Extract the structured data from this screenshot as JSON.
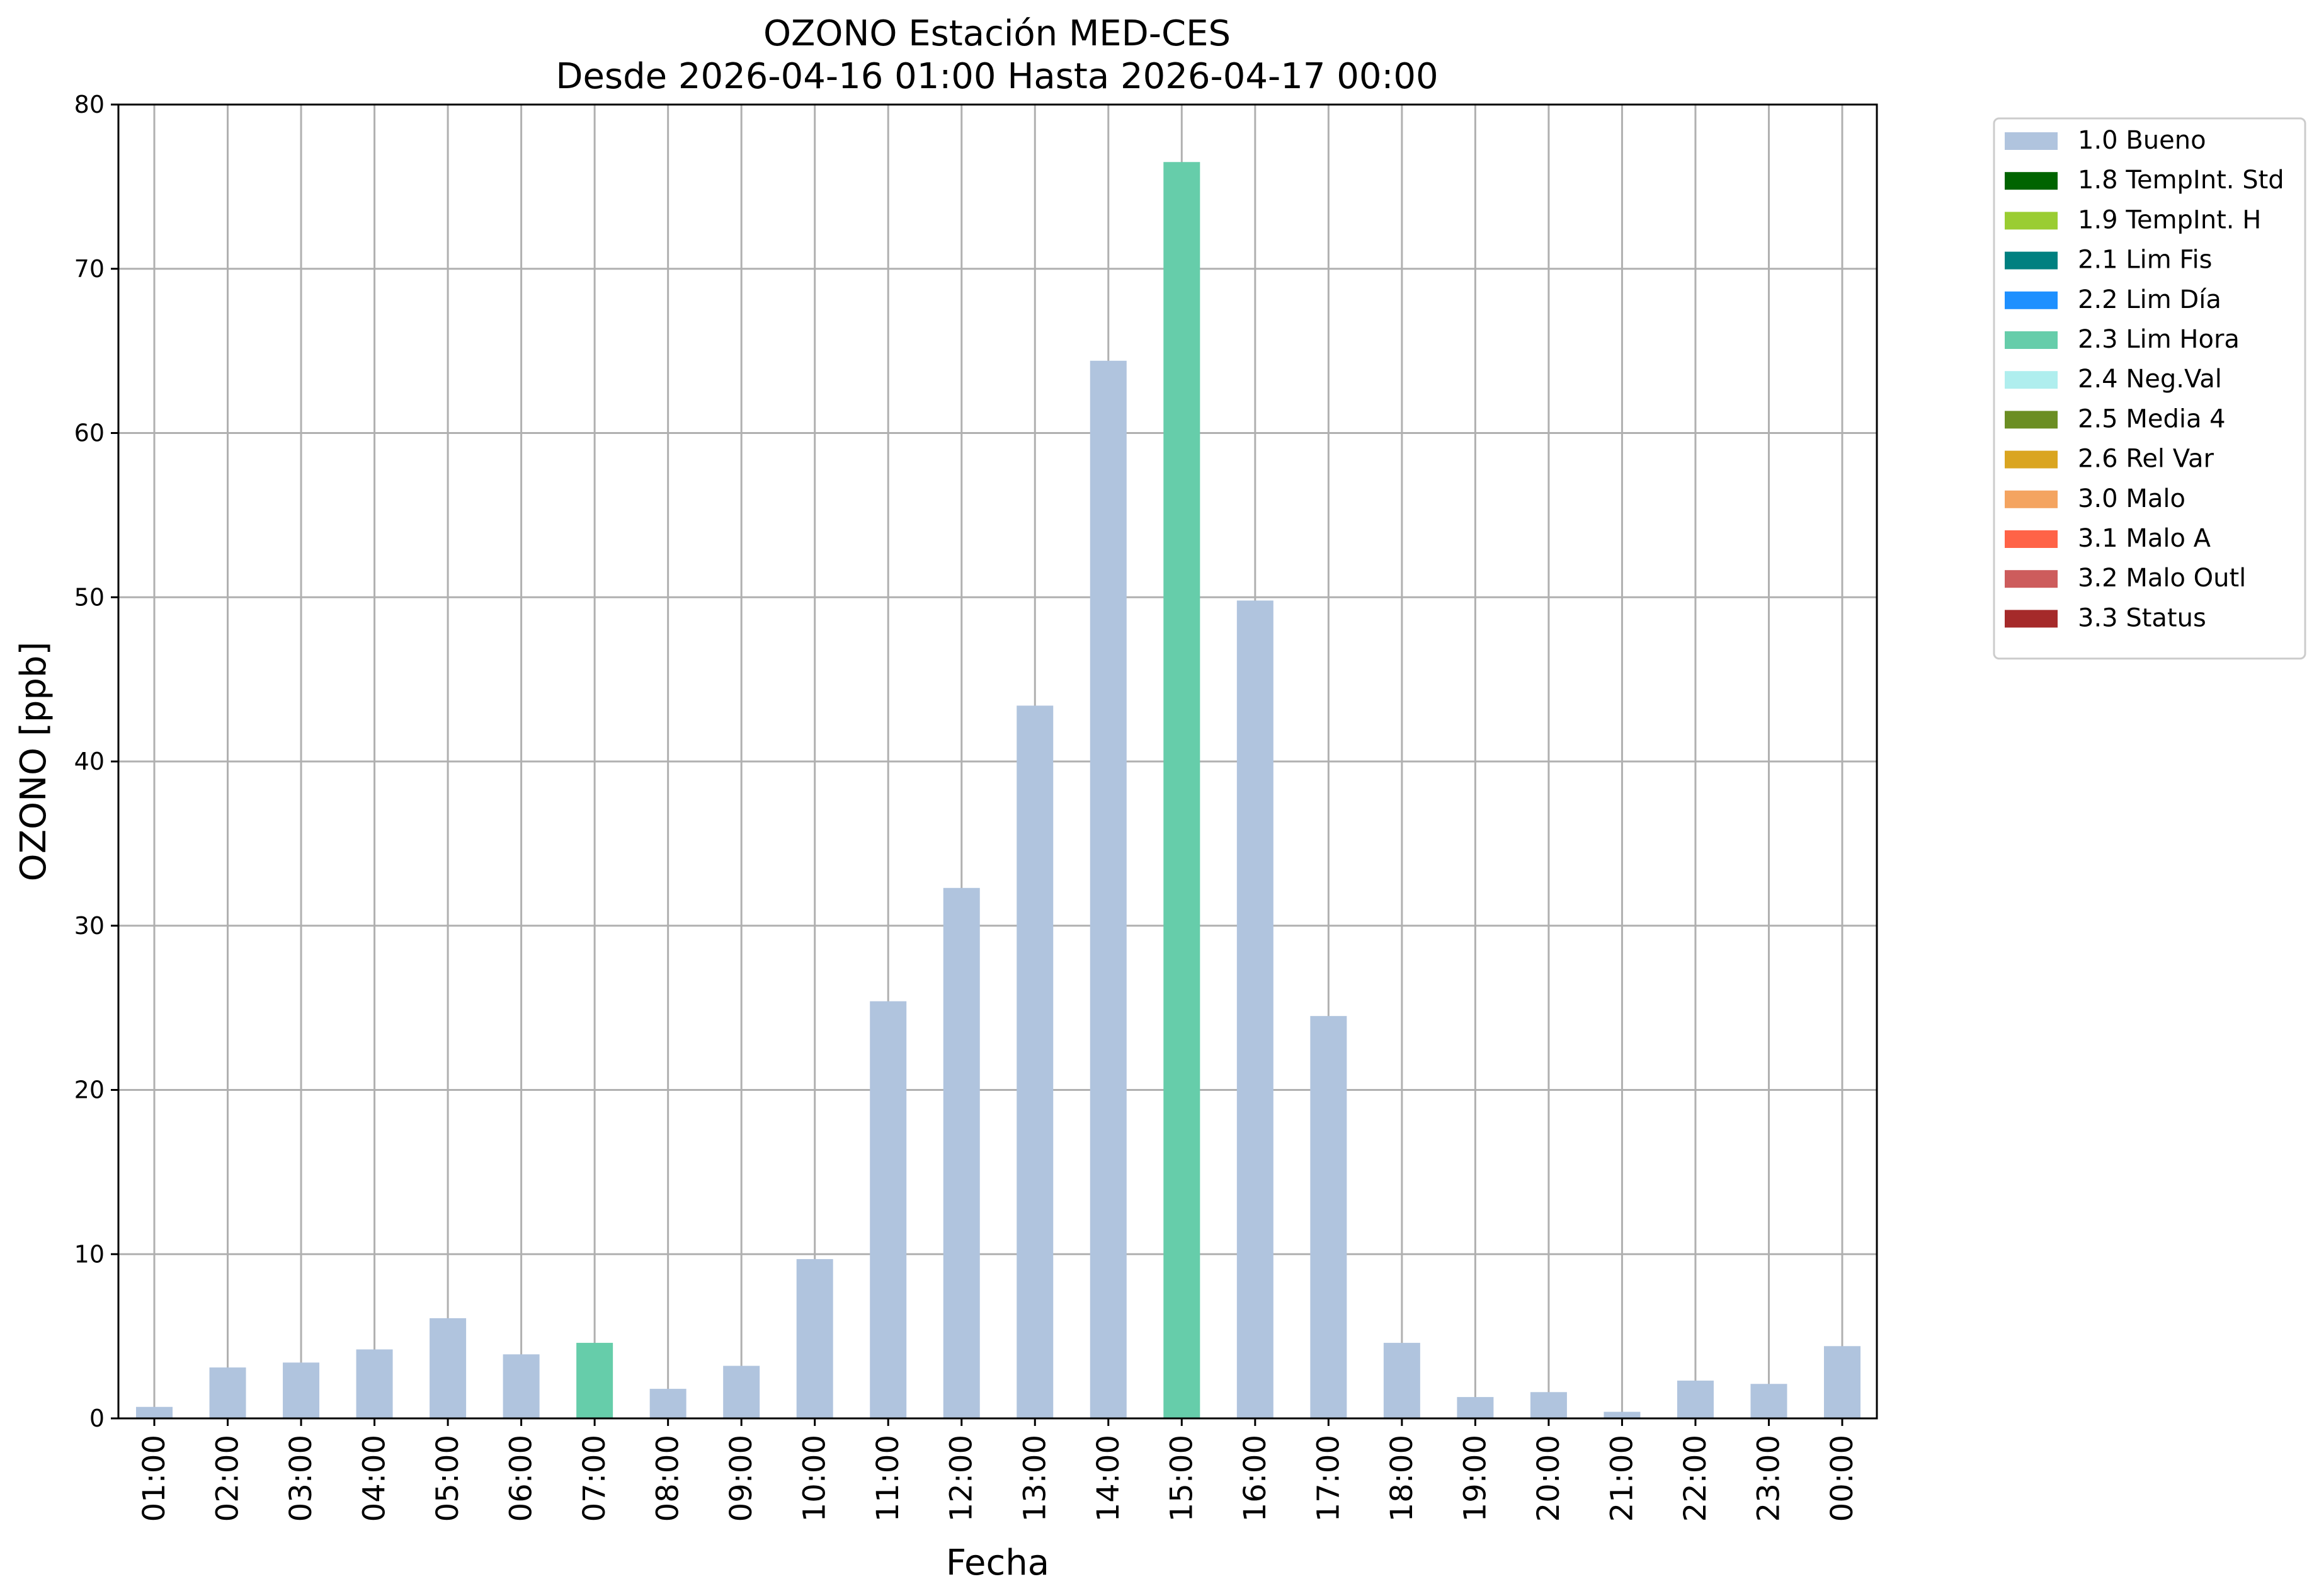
{
  "chart_data": {
    "type": "bar",
    "title": "OZONO Estación MED-CES",
    "subtitle": "Desde 2026-04-16 01:00 Hasta 2026-04-17 00:00",
    "xlabel": "Fecha",
    "ylabel": "OZONO [ppb]",
    "ylim": [
      0,
      80
    ],
    "yticks": [
      0,
      10,
      20,
      30,
      40,
      50,
      60,
      70,
      80
    ],
    "grid": true,
    "legend_position": "outside-top-right",
    "categories": [
      "01:00",
      "02:00",
      "03:00",
      "04:00",
      "05:00",
      "06:00",
      "07:00",
      "08:00",
      "09:00",
      "10:00",
      "11:00",
      "12:00",
      "13:00",
      "14:00",
      "15:00",
      "16:00",
      "17:00",
      "18:00",
      "19:00",
      "20:00",
      "21:00",
      "22:00",
      "23:00",
      "00:00"
    ],
    "values": [
      0.7,
      3.1,
      3.4,
      4.2,
      6.1,
      3.9,
      4.6,
      1.8,
      3.2,
      9.7,
      25.4,
      32.3,
      43.4,
      64.4,
      76.5,
      49.8,
      24.5,
      4.6,
      1.3,
      1.6,
      0.4,
      2.3,
      2.1,
      4.4
    ],
    "flags": [
      "1.0 Bueno",
      "1.0 Bueno",
      "1.0 Bueno",
      "1.0 Bueno",
      "1.0 Bueno",
      "1.0 Bueno",
      "2.3 Lim Hora",
      "1.0 Bueno",
      "1.0 Bueno",
      "1.0 Bueno",
      "1.0 Bueno",
      "1.0 Bueno",
      "1.0 Bueno",
      "1.0 Bueno",
      "2.3 Lim Hora",
      "1.0 Bueno",
      "1.0 Bueno",
      "1.0 Bueno",
      "1.0 Bueno",
      "1.0 Bueno",
      "1.0 Bueno",
      "1.0 Bueno",
      "1.0 Bueno",
      "1.0 Bueno"
    ],
    "legend": [
      {
        "label": "1.0 Bueno",
        "color": "#b0c4de"
      },
      {
        "label": "1.8 TempInt. Std",
        "color": "#006400"
      },
      {
        "label": "1.9 TempInt. H",
        "color": "#9acd32"
      },
      {
        "label": "2.1 Lim Fis",
        "color": "#008080"
      },
      {
        "label": "2.2 Lim Día",
        "color": "#1e90ff"
      },
      {
        "label": "2.3 Lim Hora",
        "color": "#66cdaa"
      },
      {
        "label": "2.4 Neg.Val",
        "color": "#afeeee"
      },
      {
        "label": "2.5 Media 4",
        "color": "#6b8e23"
      },
      {
        "label": "2.6 Rel Var",
        "color": "#daa520"
      },
      {
        "label": "3.0 Malo",
        "color": "#f4a460"
      },
      {
        "label": "3.1 Malo A",
        "color": "#ff6347"
      },
      {
        "label": "3.2 Malo Outl",
        "color": "#cd5c5c"
      },
      {
        "label": "3.3 Status",
        "color": "#a52a2a"
      }
    ]
  }
}
